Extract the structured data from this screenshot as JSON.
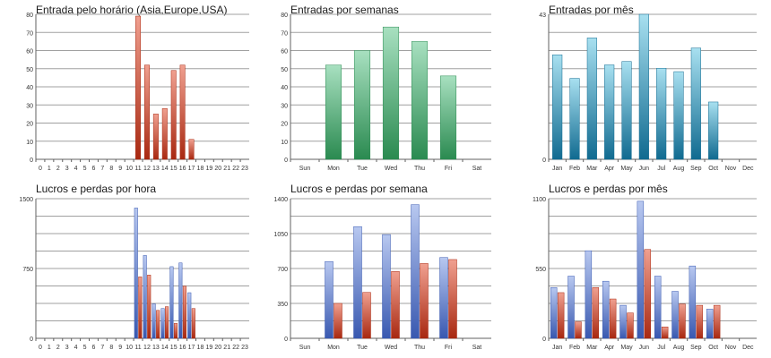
{
  "colors": {
    "red_top": "#f0a090",
    "red_bottom": "#a82810",
    "green_top": "#a8e0c0",
    "green_bottom": "#2a8a50",
    "teal_top": "#a8e0f0",
    "teal_bottom": "#106a90",
    "blue_top": "#b8c8f0",
    "blue_bottom": "#3858b0",
    "grid": "#a0a0a0",
    "axis": "#606060"
  },
  "chart_data": [
    {
      "type": "bar",
      "title": "Entrada pelo horário (Asia,Europe,USA)",
      "categories": [
        "0",
        "1",
        "2",
        "3",
        "4",
        "5",
        "6",
        "7",
        "8",
        "9",
        "10",
        "11",
        "12",
        "13",
        "14",
        "15",
        "16",
        "17",
        "18",
        "19",
        "20",
        "21",
        "22",
        "23"
      ],
      "yticks": [
        "0",
        "10",
        "20",
        "30",
        "40",
        "50",
        "60",
        "70",
        "80"
      ],
      "ylim": [
        0,
        80
      ],
      "series": [
        {
          "values": [
            0,
            0,
            0,
            0,
            0,
            0,
            0,
            0,
            0,
            0,
            0,
            79,
            52,
            25,
            28,
            49,
            52,
            11,
            0,
            0,
            0,
            0,
            0,
            0
          ],
          "color": "red"
        }
      ],
      "grid": true
    },
    {
      "type": "bar",
      "title": "Entradas por semanas",
      "categories": [
        "Sun",
        "Mon",
        "Tue",
        "Wed",
        "Thu",
        "Fri",
        "Sat"
      ],
      "yticks": [
        "0",
        "10",
        "20",
        "30",
        "40",
        "50",
        "60",
        "70",
        "80"
      ],
      "ylim": [
        0,
        80
      ],
      "series": [
        {
          "values": [
            0,
            52,
            60,
            73,
            65,
            46,
            0
          ],
          "color": "green"
        }
      ],
      "grid": true
    },
    {
      "type": "bar",
      "title": "Entradas por mês",
      "categories": [
        "Jan",
        "Feb",
        "Mar",
        "Apr",
        "May",
        "Jun",
        "Jul",
        "Aug",
        "Sep",
        "Oct",
        "Nov",
        "Dec"
      ],
      "yticks": [
        "0",
        "43"
      ],
      "ylim": [
        0,
        43
      ],
      "series": [
        {
          "values": [
            31,
            24,
            36,
            28,
            29,
            43,
            27,
            26,
            33,
            17,
            0,
            0
          ],
          "color": "teal"
        }
      ],
      "grid": true
    },
    {
      "type": "bar",
      "title": "Lucros e perdas por hora",
      "categories": [
        "0",
        "1",
        "2",
        "3",
        "4",
        "5",
        "6",
        "7",
        "8",
        "9",
        "10",
        "11",
        "12",
        "13",
        "14",
        "15",
        "16",
        "17",
        "18",
        "19",
        "20",
        "21",
        "22",
        "23"
      ],
      "yticks": [
        "0",
        "750",
        "1500"
      ],
      "ylim": [
        0,
        1500
      ],
      "series": [
        {
          "values": [
            0,
            0,
            0,
            0,
            0,
            0,
            0,
            0,
            0,
            0,
            0,
            1400,
            890,
            370,
            320,
            770,
            810,
            490,
            0,
            0,
            0,
            0,
            0,
            0
          ],
          "color": "blue"
        },
        {
          "values": [
            0,
            0,
            0,
            0,
            0,
            0,
            0,
            0,
            0,
            0,
            0,
            660,
            680,
            300,
            340,
            160,
            560,
            320,
            0,
            0,
            0,
            0,
            0,
            0
          ],
          "color": "red"
        }
      ],
      "grid": true
    },
    {
      "type": "bar",
      "title": "Lucros e perdas por semana",
      "categories": [
        "Sun",
        "Mon",
        "Tue",
        "Wed",
        "Thu",
        "Fri",
        "Sat"
      ],
      "yticks": [
        "0",
        "350",
        "700",
        "1050",
        "1400"
      ],
      "ylim": [
        0,
        1400
      ],
      "series": [
        {
          "values": [
            0,
            770,
            1120,
            1040,
            1340,
            810,
            0
          ],
          "color": "blue"
        },
        {
          "values": [
            0,
            350,
            460,
            670,
            750,
            790,
            0
          ],
          "color": "red"
        }
      ],
      "grid": true
    },
    {
      "type": "bar",
      "title": "Lucros e perdas por mês",
      "categories": [
        "Jan",
        "Feb",
        "Mar",
        "Apr",
        "May",
        "Jun",
        "Jul",
        "Aug",
        "Sep",
        "Oct",
        "Nov",
        "Dec"
      ],
      "yticks": [
        "0",
        "550",
        "1100"
      ],
      "ylim": [
        0,
        1100
      ],
      "series": [
        {
          "values": [
            400,
            490,
            690,
            450,
            260,
            1080,
            490,
            370,
            570,
            230,
            0,
            0
          ],
          "color": "blue"
        },
        {
          "values": [
            360,
            130,
            400,
            310,
            200,
            700,
            90,
            270,
            260,
            260,
            0,
            0
          ],
          "color": "red"
        }
      ],
      "grid": true
    }
  ]
}
